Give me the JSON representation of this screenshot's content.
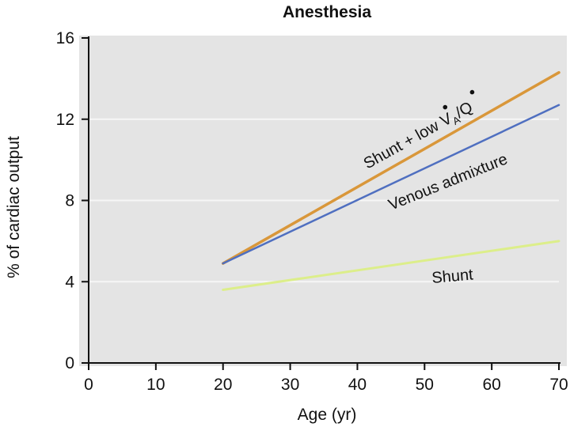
{
  "chart_data": {
    "type": "line",
    "title": "Anesthesia",
    "xlabel": "Age (yr)",
    "ylabel": "% of cardiac output",
    "xlim": [
      0,
      70
    ],
    "ylim": [
      0,
      16
    ],
    "xticks": [
      0,
      10,
      20,
      30,
      40,
      50,
      60,
      70
    ],
    "yticks": [
      0,
      4,
      8,
      12,
      16
    ],
    "xtick_labels": [
      "0",
      "10",
      "20",
      "30",
      "40",
      "50",
      "60",
      "70"
    ],
    "ytick_labels": [
      "0",
      "4",
      "8",
      "12",
      "16"
    ],
    "grid": true,
    "series": [
      {
        "name": "Shunt + low VA/Q",
        "label_parts": {
          "main": "Shunt + low V",
          "sub": "A",
          "tail": "/Q"
        },
        "color": "#d9973a",
        "x": [
          20,
          70
        ],
        "y": [
          4.9,
          14.3
        ]
      },
      {
        "name": "Venous admixture",
        "color": "#4f6fc0",
        "x": [
          20,
          70
        ],
        "y": [
          4.9,
          12.7
        ]
      },
      {
        "name": "Shunt",
        "color": "#dcee8a",
        "x": [
          20,
          70
        ],
        "y": [
          3.6,
          6.0
        ]
      }
    ]
  }
}
